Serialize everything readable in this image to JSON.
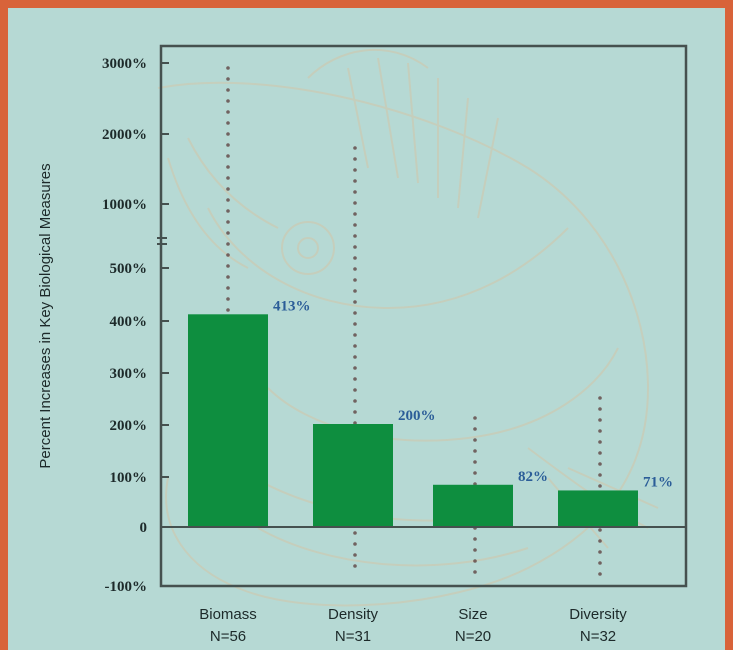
{
  "chart_data": {
    "type": "bar",
    "title": "",
    "xlabel": "",
    "ylabel": "Percent Increases in Key Biological Measures",
    "y_ticks": [
      "3000%",
      "2000%",
      "1000%",
      "500%",
      "400%",
      "300%",
      "200%",
      "100%",
      "0",
      "-100%"
    ],
    "categories": [
      "Biomass",
      "Density",
      "Size",
      "Diversity"
    ],
    "sample_sizes": [
      "N=56",
      "N=31",
      "N=20",
      "N=32"
    ],
    "values": [
      413,
      200,
      82,
      71
    ],
    "value_labels": [
      "413%",
      "200%",
      "82%",
      "71%"
    ],
    "colors": {
      "bar": "#0e8e3f",
      "label": "#2b5d98",
      "background": "#b6d9d4",
      "border": "#d8633a"
    }
  }
}
